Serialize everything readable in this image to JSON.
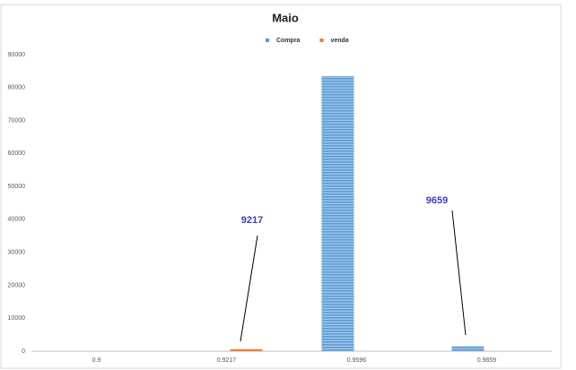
{
  "chart_data": {
    "type": "bar",
    "title": "Maio",
    "categories": [
      "0.9",
      "0.9217",
      "0.9596",
      "0.9659"
    ],
    "series": [
      {
        "name": "Compra",
        "color": "#5b9bd5",
        "values": [
          null,
          null,
          83500,
          1500
        ]
      },
      {
        "name": "venda",
        "color": "#ed7d31",
        "values": [
          null,
          600,
          null,
          null
        ]
      }
    ],
    "ylim": [
      0,
      90000
    ],
    "yticks": [
      0,
      10000,
      20000,
      30000,
      40000,
      50000,
      60000,
      70000,
      80000,
      90000
    ],
    "annotations": [
      {
        "text": "9217"
      },
      {
        "text": "9659"
      }
    ],
    "legend": "top"
  }
}
